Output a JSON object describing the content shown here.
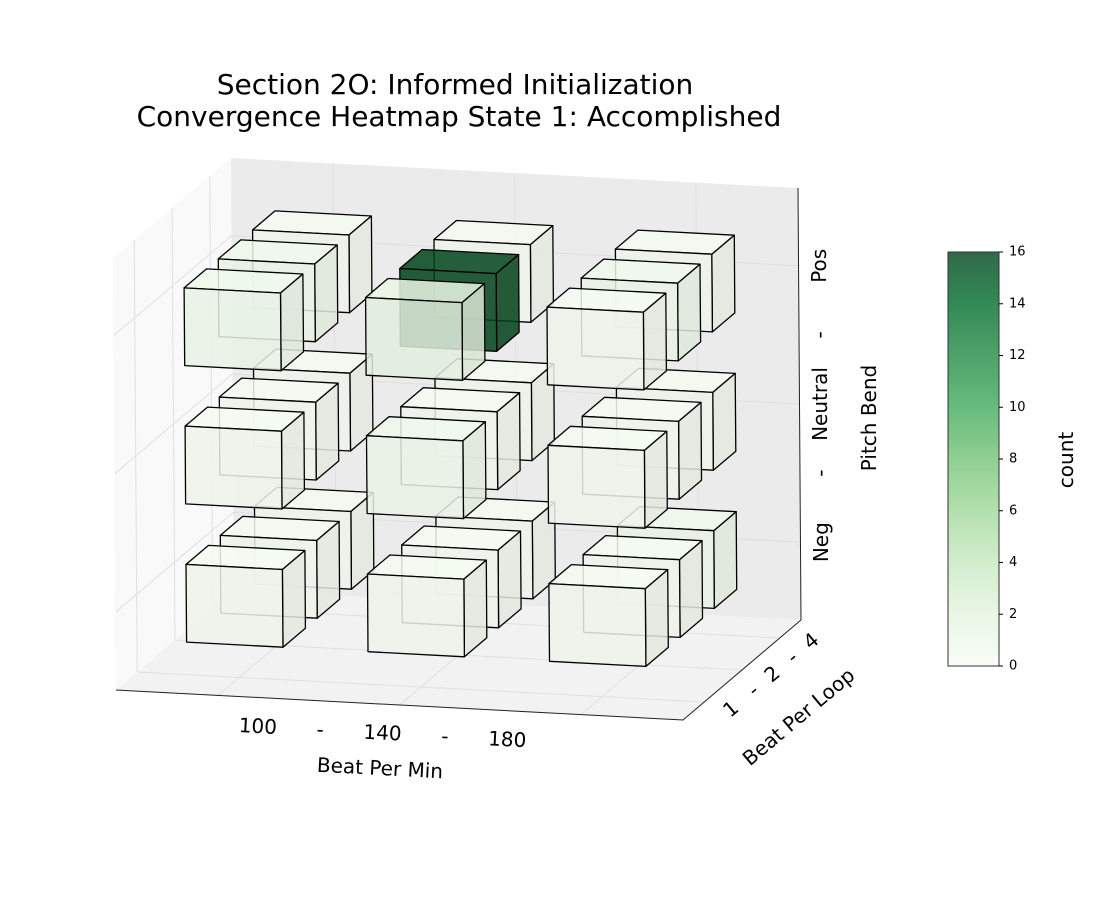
{
  "title": {
    "line1": "Section 2O: Informed Initialization",
    "line2": "Convergence Heatmap State 1: Accomplished"
  },
  "chart_data": {
    "type": "heatmap",
    "subtype": "3d-voxel",
    "x_axis": {
      "label": "Beat Per Min",
      "ticks": [
        "100",
        "-",
        "140",
        "-",
        "180"
      ],
      "categories": [
        "100",
        "140",
        "180"
      ]
    },
    "y_axis": {
      "label": "Beat Per Loop",
      "ticks": [
        "1",
        "-",
        "2",
        "-",
        "4"
      ],
      "categories": [
        "1",
        "2",
        "4"
      ]
    },
    "z_axis": {
      "label": "Pitch Bend",
      "ticks": [
        "Neg",
        "-",
        "Neutral",
        "-",
        "Pos"
      ],
      "categories": [
        "Neg",
        "Neutral",
        "Pos"
      ]
    },
    "colorbar": {
      "label": "count",
      "min": 0,
      "max": 16,
      "ticks": [
        "0",
        "2",
        "4",
        "6",
        "8",
        "10",
        "12",
        "14",
        "16"
      ],
      "colormap": "Greens"
    },
    "cells": [
      {
        "bpm": "100",
        "loop": "1",
        "pitch": "Neg",
        "count": 0.3
      },
      {
        "bpm": "100",
        "loop": "2",
        "pitch": "Neg",
        "count": 0.3
      },
      {
        "bpm": "100",
        "loop": "4",
        "pitch": "Neg",
        "count": 0.3
      },
      {
        "bpm": "140",
        "loop": "1",
        "pitch": "Neg",
        "count": 0.3
      },
      {
        "bpm": "140",
        "loop": "2",
        "pitch": "Neg",
        "count": 0.3
      },
      {
        "bpm": "140",
        "loop": "4",
        "pitch": "Neg",
        "count": 0.3
      },
      {
        "bpm": "180",
        "loop": "1",
        "pitch": "Neg",
        "count": 0.3
      },
      {
        "bpm": "180",
        "loop": "2",
        "pitch": "Neg",
        "count": 0.3
      },
      {
        "bpm": "180",
        "loop": "4",
        "pitch": "Neg",
        "count": 0.8
      },
      {
        "bpm": "100",
        "loop": "1",
        "pitch": "Neutral",
        "count": 0.3
      },
      {
        "bpm": "100",
        "loop": "2",
        "pitch": "Neutral",
        "count": 0.3
      },
      {
        "bpm": "100",
        "loop": "4",
        "pitch": "Neutral",
        "count": 0.3
      },
      {
        "bpm": "140",
        "loop": "1",
        "pitch": "Neutral",
        "count": 0.8
      },
      {
        "bpm": "140",
        "loop": "2",
        "pitch": "Neutral",
        "count": 0.3
      },
      {
        "bpm": "140",
        "loop": "4",
        "pitch": "Neutral",
        "count": 0.3
      },
      {
        "bpm": "180",
        "loop": "1",
        "pitch": "Neutral",
        "count": 0.3
      },
      {
        "bpm": "180",
        "loop": "2",
        "pitch": "Neutral",
        "count": 0.3
      },
      {
        "bpm": "180",
        "loop": "4",
        "pitch": "Neutral",
        "count": 0.3
      },
      {
        "bpm": "100",
        "loop": "1",
        "pitch": "Pos",
        "count": 0.8
      },
      {
        "bpm": "100",
        "loop": "2",
        "pitch": "Pos",
        "count": 0.8
      },
      {
        "bpm": "100",
        "loop": "4",
        "pitch": "Pos",
        "count": 0.3
      },
      {
        "bpm": "140",
        "loop": "1",
        "pitch": "Pos",
        "count": 1.5
      },
      {
        "bpm": "140",
        "loop": "2",
        "pitch": "Pos",
        "count": 16
      },
      {
        "bpm": "140",
        "loop": "4",
        "pitch": "Pos",
        "count": 0.3
      },
      {
        "bpm": "180",
        "loop": "1",
        "pitch": "Pos",
        "count": 0.3
      },
      {
        "bpm": "180",
        "loop": "2",
        "pitch": "Pos",
        "count": 0.8
      },
      {
        "bpm": "180",
        "loop": "4",
        "pitch": "Pos",
        "count": 0.3
      }
    ]
  }
}
